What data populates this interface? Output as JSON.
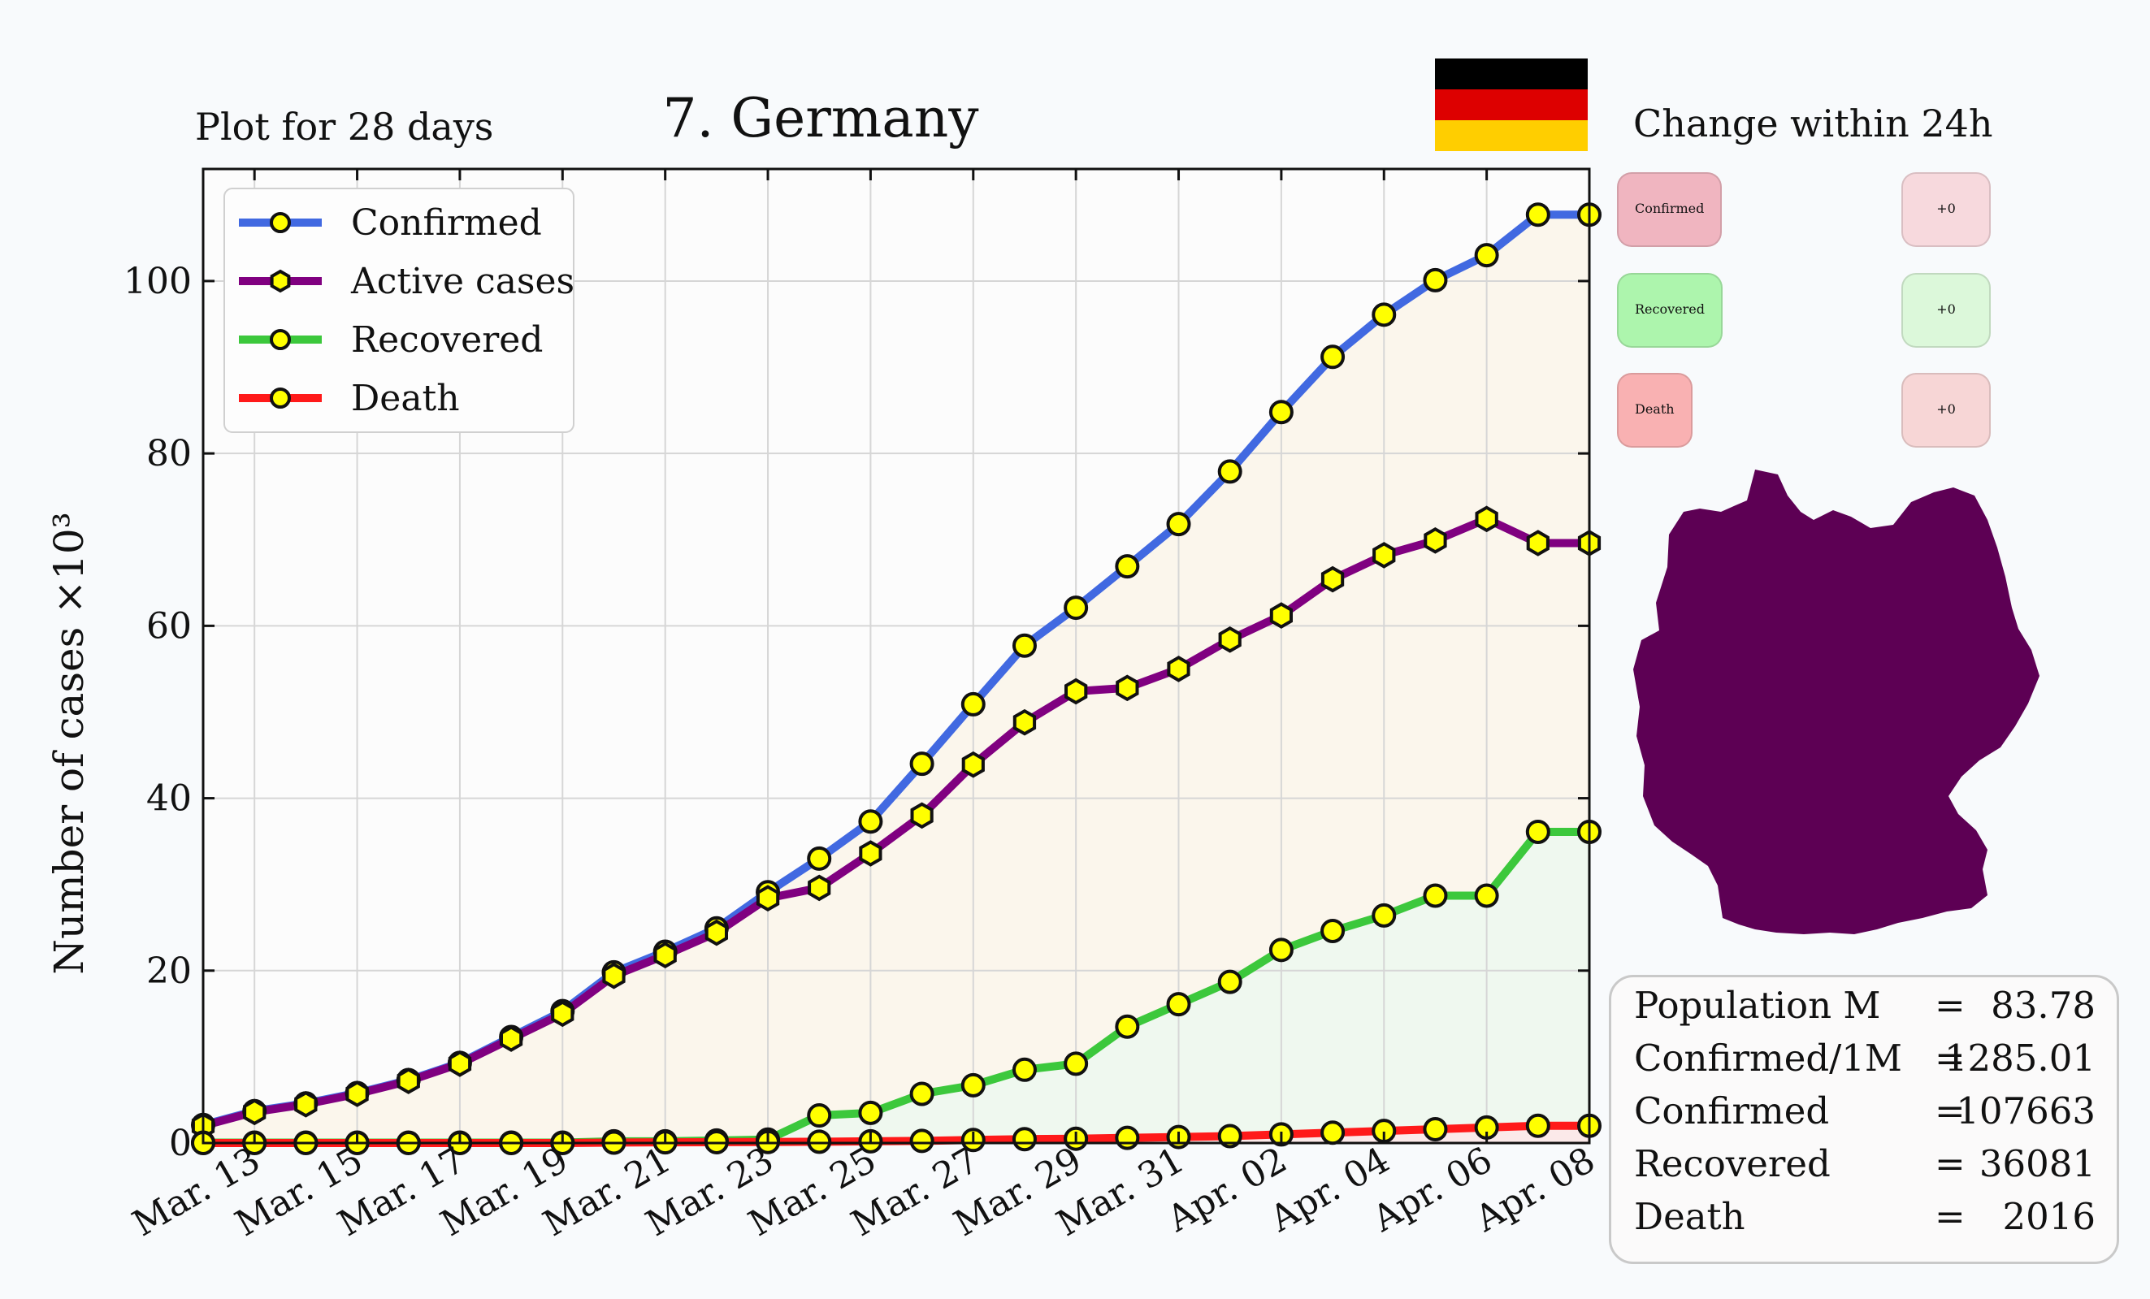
{
  "header": {
    "plot_days_label": "Plot for 28 days",
    "country_title": "7. Germany",
    "change_title": "Change within 24h"
  },
  "flag": {
    "colors": [
      "#000000",
      "#dd0000",
      "#ffce00"
    ]
  },
  "change_24h": {
    "items": [
      {
        "label": "Confirmed",
        "delta": "+0",
        "color": "#f0b5c0",
        "delta_color": "#f7d9dd"
      },
      {
        "label": "Recovered",
        "delta": "+0",
        "color": "#adf5ad",
        "delta_color": "#dcf8da"
      },
      {
        "label": "Death",
        "delta": "+0",
        "color": "#f9b1b2",
        "delta_color": "#f7d6d6"
      }
    ]
  },
  "map": {
    "icon": "germany-map-icon",
    "color": "#5d0054"
  },
  "stats": {
    "rows": [
      {
        "label": "Population M",
        "eq": "=",
        "value": "83.78"
      },
      {
        "label": "Confirmed/1M",
        "eq": "=",
        "value": "1285.01"
      },
      {
        "label": "Confirmed",
        "eq": "=",
        "value": "107663"
      },
      {
        "label": "Recovered",
        "eq": "=",
        "value": "36081"
      },
      {
        "label": "Death",
        "eq": "=",
        "value": "2016"
      }
    ]
  },
  "chart_data": {
    "type": "line",
    "ylabel": "Number of cases ×10³",
    "ylim": [
      0,
      113
    ],
    "yticks": [
      0,
      20,
      40,
      60,
      80,
      100
    ],
    "x": [
      "Mar. 12",
      "Mar. 13",
      "Mar. 14",
      "Mar. 15",
      "Mar. 16",
      "Mar. 17",
      "Mar. 18",
      "Mar. 19",
      "Mar. 20",
      "Mar. 21",
      "Mar. 22",
      "Mar. 23",
      "Mar. 24",
      "Mar. 25",
      "Mar. 26",
      "Mar. 27",
      "Mar. 28",
      "Mar. 29",
      "Mar. 30",
      "Mar. 31",
      "Apr. 01",
      "Apr. 02",
      "Apr. 03",
      "Apr. 04",
      "Apr. 05",
      "Apr. 06",
      "Apr. 07",
      "Apr. 08"
    ],
    "tick_labels": [
      "Mar. 13",
      "Mar. 15",
      "Mar. 17",
      "Mar. 19",
      "Mar. 21",
      "Mar. 23",
      "Mar. 25",
      "Mar. 27",
      "Mar. 29",
      "Mar. 31",
      "Apr. 02",
      "Apr. 04",
      "Apr. 06",
      "Apr. 08"
    ],
    "grid": true,
    "legend_position": "top-left",
    "series": [
      {
        "name": "Confirmed",
        "color": "#4169e1",
        "marker": "circle",
        "values": [
          2.1,
          3.7,
          4.6,
          5.8,
          7.3,
          9.3,
          12.3,
          15.3,
          19.8,
          22.2,
          24.9,
          29.1,
          33.0,
          37.3,
          44.0,
          50.9,
          57.7,
          62.1,
          66.9,
          71.8,
          77.9,
          84.8,
          91.2,
          96.1,
          100.1,
          103.0,
          107.7,
          107.7
        ]
      },
      {
        "name": "Active cases",
        "color": "#800080",
        "marker": "hexagon",
        "values": [
          2.0,
          3.6,
          4.5,
          5.7,
          7.2,
          9.2,
          12.1,
          15.0,
          19.4,
          21.8,
          24.4,
          28.4,
          29.6,
          33.6,
          38.0,
          43.9,
          48.8,
          52.4,
          52.8,
          55.0,
          58.4,
          61.2,
          65.4,
          68.2,
          69.9,
          72.4,
          69.6,
          69.6
        ]
      },
      {
        "name": "Recovered",
        "color": "#3cc83c",
        "marker": "circle",
        "values": [
          0.05,
          0.05,
          0.05,
          0.05,
          0.05,
          0.05,
          0.05,
          0.05,
          0.2,
          0.2,
          0.3,
          0.4,
          3.2,
          3.5,
          5.7,
          6.7,
          8.5,
          9.2,
          13.5,
          16.1,
          18.7,
          22.4,
          24.6,
          26.4,
          28.7,
          28.7,
          36.1,
          36.1
        ]
      },
      {
        "name": "Death",
        "color": "#ff1a1a",
        "marker": "circle",
        "values": [
          0,
          0,
          0,
          0,
          0,
          0,
          0,
          0,
          0.05,
          0.08,
          0.1,
          0.12,
          0.15,
          0.2,
          0.25,
          0.35,
          0.45,
          0.5,
          0.6,
          0.7,
          0.8,
          1.0,
          1.2,
          1.4,
          1.6,
          1.8,
          2.0,
          2.0
        ]
      }
    ]
  }
}
